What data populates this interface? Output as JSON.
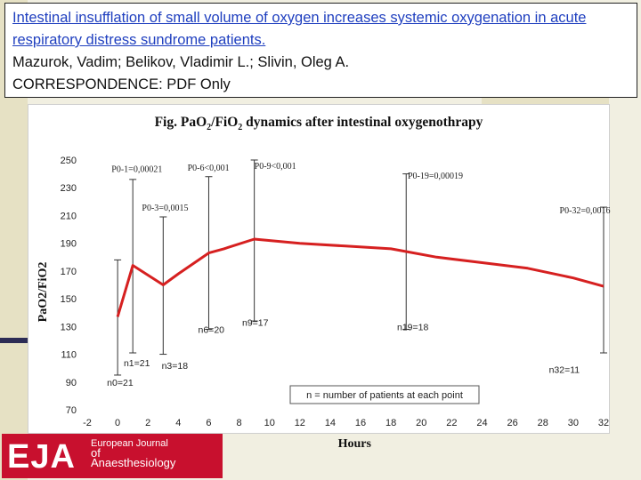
{
  "header": {
    "title_line1": "Intestinal insufflation of small volume of oxygen increases systemic oxygenation in acute",
    "title_line2": "respiratory distress sundrome patients.",
    "authors": "Mazurok, Vadim; Belikov, Vladimir L.; Slivin, Oleg A.",
    "access": "CORRESPONDENCE: PDF Only"
  },
  "logo": {
    "mark": "EJA",
    "line1": "European Journal",
    "line2": "of",
    "line3": "Anaesthesiology"
  },
  "colors": {
    "series": "#d62020",
    "errorbar": "#333333",
    "logo": "#c8102e",
    "link": "#1f3fbf"
  },
  "chart_data": {
    "type": "line",
    "title": "Fig. PaO2/FiO2 dynamics after intestinal oxygenothrapy",
    "xlabel": "Hours",
    "ylabel": "PaO2/FiO2",
    "xlim": [
      -2,
      32
    ],
    "ylim": [
      70,
      250
    ],
    "xticks": [
      -2,
      0,
      2,
      4,
      6,
      8,
      10,
      12,
      14,
      16,
      18,
      20,
      22,
      24,
      26,
      28,
      30,
      32
    ],
    "yticks": [
      70,
      90,
      110,
      130,
      150,
      170,
      190,
      210,
      230,
      250
    ],
    "grid": false,
    "series": [
      {
        "x": [
          0,
          1,
          3,
          4,
          6,
          7,
          9,
          12,
          15,
          18,
          19,
          21,
          24,
          27,
          30,
          32
        ],
        "y": [
          137,
          174,
          160,
          168,
          183,
          186,
          193,
          190,
          188,
          186,
          184,
          180,
          176,
          172,
          165,
          159
        ]
      }
    ],
    "errorbars": [
      {
        "x": 0,
        "low": 95,
        "high": 178
      },
      {
        "x": 1,
        "low": 111,
        "high": 236
      },
      {
        "x": 3,
        "low": 110,
        "high": 209
      },
      {
        "x": 6,
        "low": 128,
        "high": 238
      },
      {
        "x": 9,
        "low": 134,
        "high": 250
      },
      {
        "x": 19,
        "low": 128,
        "high": 240
      },
      {
        "x": 32,
        "low": 111,
        "high": 216
      }
    ],
    "p_labels": [
      {
        "x": -0.4,
        "y": 244,
        "text": "P0-1=0,00021"
      },
      {
        "x": 1.6,
        "y": 216,
        "text": "P0-3=0,0015"
      },
      {
        "x": 4.6,
        "y": 245,
        "text": "P0-6<0,001"
      },
      {
        "x": 9.0,
        "y": 246,
        "text": "P0-9<0,001"
      },
      {
        "x": 19.1,
        "y": 239,
        "text": "P0-19=0,00019"
      },
      {
        "x": 29.1,
        "y": 214,
        "text": "P0-32=0,0016"
      }
    ],
    "n_labels": [
      {
        "x": -0.7,
        "y": 90,
        "text": "n0=21"
      },
      {
        "x": 0.4,
        "y": 104,
        "text": "n1=21"
      },
      {
        "x": 2.9,
        "y": 102,
        "text": "n3=18"
      },
      {
        "x": 5.3,
        "y": 128,
        "text": "n6=20"
      },
      {
        "x": 8.2,
        "y": 133,
        "text": "n9=17"
      },
      {
        "x": 18.4,
        "y": 130,
        "text": "n19=18"
      },
      {
        "x": 28.4,
        "y": 99,
        "text": "n32=11"
      }
    ],
    "annotation": "n = number of patients at each point"
  }
}
